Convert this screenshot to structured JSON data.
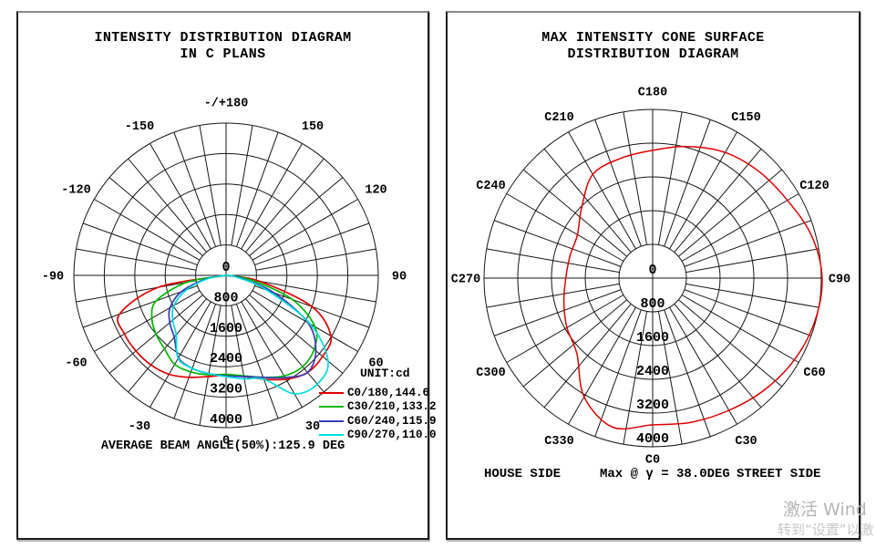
{
  "watermark": {
    "line1": "激活 Wind",
    "line2": "转到“设置”以激"
  },
  "chart_data": [
    {
      "type": "line",
      "polar": true,
      "title": [
        "INTENSITY DISTRIBUTION DIAGRAM",
        "IN C PLANS"
      ],
      "unit_label": "UNIT:cd",
      "footer": "AVERAGE BEAM ANGLE(50%):125.9 DEG",
      "rmax": 4000,
      "ring_values": [
        800,
        1600,
        2400,
        3200,
        4000
      ],
      "radial_tick_labels": [
        "0",
        "800",
        "1600",
        "2400",
        "3200",
        "4000"
      ],
      "spoke_step_deg": 10,
      "angle_labels": [
        {
          "a": 180,
          "t": "-/+180"
        },
        {
          "a": 150,
          "t": "150"
        },
        {
          "a": 120,
          "t": "120"
        },
        {
          "a": 90,
          "t": "90"
        },
        {
          "a": 60,
          "t": "60"
        },
        {
          "a": 30,
          "t": "30"
        },
        {
          "a": 0,
          "t": "0",
          "r": 180
        },
        {
          "a": -30,
          "t": "-30"
        },
        {
          "a": -60,
          "t": "-60"
        },
        {
          "a": -90,
          "t": "-90"
        },
        {
          "a": -120,
          "t": "-120"
        },
        {
          "a": -150,
          "t": "-150"
        }
      ],
      "legend": [
        {
          "label": "C0/180,144.6",
          "color": "#e00000"
        },
        {
          "label": "C30/210,133.2",
          "color": "#00b800"
        },
        {
          "label": "C60/240,115.9",
          "color": "#3a3ab8"
        },
        {
          "label": "C90/270,110.0",
          "color": "#00dcdc"
        }
      ],
      "series": [
        {
          "name": "C0-180",
          "color": "#e00000",
          "closed": false,
          "angles_deg": [
            -90,
            -80,
            -70,
            -60,
            -50,
            -40,
            -30,
            -20,
            -10,
            0,
            10,
            20,
            30,
            40,
            50,
            60,
            70,
            80,
            90
          ],
          "cd": [
            0,
            1800,
            2980,
            3080,
            3090,
            3070,
            3000,
            2850,
            2700,
            2620,
            2700,
            2900,
            3150,
            3330,
            3310,
            3180,
            2400,
            900,
            0
          ]
        },
        {
          "name": "C30-210",
          "color": "#00b800",
          "closed": false,
          "angles_deg": [
            -90,
            -80,
            -70,
            -60,
            -50,
            -40,
            -30,
            -20,
            -10,
            0,
            10,
            20,
            30,
            40,
            50,
            60,
            70,
            80,
            90
          ],
          "cd": [
            0,
            1050,
            1950,
            2250,
            2400,
            2520,
            2700,
            2700,
            2650,
            2600,
            2680,
            2850,
            3050,
            3130,
            3020,
            2700,
            1850,
            650,
            0
          ]
        },
        {
          "name": "C60-240",
          "color": "#3a3ab8",
          "closed": false,
          "angles_deg": [
            -90,
            -80,
            -70,
            -60,
            -50,
            -40,
            -30,
            -20,
            -10,
            0,
            10,
            20,
            30,
            40,
            50,
            60,
            70,
            80,
            90
          ],
          "cd": [
            0,
            550,
            1250,
            1700,
            1930,
            2120,
            2500,
            2600,
            2620,
            2640,
            2700,
            2850,
            3100,
            3330,
            3080,
            2480,
            1350,
            400,
            0
          ]
        },
        {
          "name": "C90-270",
          "color": "#00dcdc",
          "closed": false,
          "angles_deg": [
            -90,
            -80,
            -70,
            -60,
            -50,
            -40,
            -30,
            -20,
            -10,
            0,
            10,
            20,
            30,
            40,
            50,
            60,
            70,
            80,
            90
          ],
          "cd": [
            0,
            480,
            1100,
            1580,
            1830,
            2040,
            2520,
            2600,
            2620,
            2660,
            2760,
            2900,
            3590,
            3730,
            3500,
            2550,
            1150,
            300,
            0
          ]
        }
      ]
    },
    {
      "type": "line",
      "polar": true,
      "title": [
        "MAX INTENSITY CONE SURFACE",
        "DISTRIBUTION DIAGRAM"
      ],
      "footer": {
        "left": "HOUSE SIDE",
        "center": "Max @ γ = 38.0DEG",
        "right": "STREET SIDE"
      },
      "rmax": 4000,
      "ring_values": [
        800,
        1600,
        2400,
        3200,
        4000
      ],
      "radial_tick_labels": [
        "0",
        "800",
        "1600",
        "2400",
        "3200",
        "4000"
      ],
      "spoke_step_deg": 10,
      "angle_labels": [
        {
          "a": 180,
          "t": "C180"
        },
        {
          "a": 210,
          "t": "C210"
        },
        {
          "a": 150,
          "t": "C150"
        },
        {
          "a": 240,
          "t": "C240"
        },
        {
          "a": 120,
          "t": "C120"
        },
        {
          "a": 270,
          "t": "C270"
        },
        {
          "a": 90,
          "t": "C90"
        },
        {
          "a": 300,
          "t": "C300"
        },
        {
          "a": 60,
          "t": "C60"
        },
        {
          "a": 330,
          "t": "C330"
        },
        {
          "a": 30,
          "t": "C30"
        },
        {
          "a": 0,
          "t": "C0",
          "r": 198
        }
      ],
      "series": [
        {
          "name": "max-intensity-cone",
          "color": "#e00000",
          "closed": true,
          "angles_deg": [
            0,
            15,
            30,
            45,
            60,
            75,
            90,
            105,
            120,
            135,
            150,
            165,
            180,
            195,
            210,
            225,
            240,
            255,
            270,
            285,
            300,
            315,
            330,
            345
          ],
          "cd": [
            3480,
            3540,
            3620,
            3750,
            3880,
            3980,
            4020,
            3900,
            3690,
            3570,
            3440,
            3230,
            3030,
            2940,
            2840,
            2380,
            2060,
            2030,
            2060,
            2180,
            2350,
            2540,
            3250,
            3660
          ]
        }
      ]
    }
  ]
}
